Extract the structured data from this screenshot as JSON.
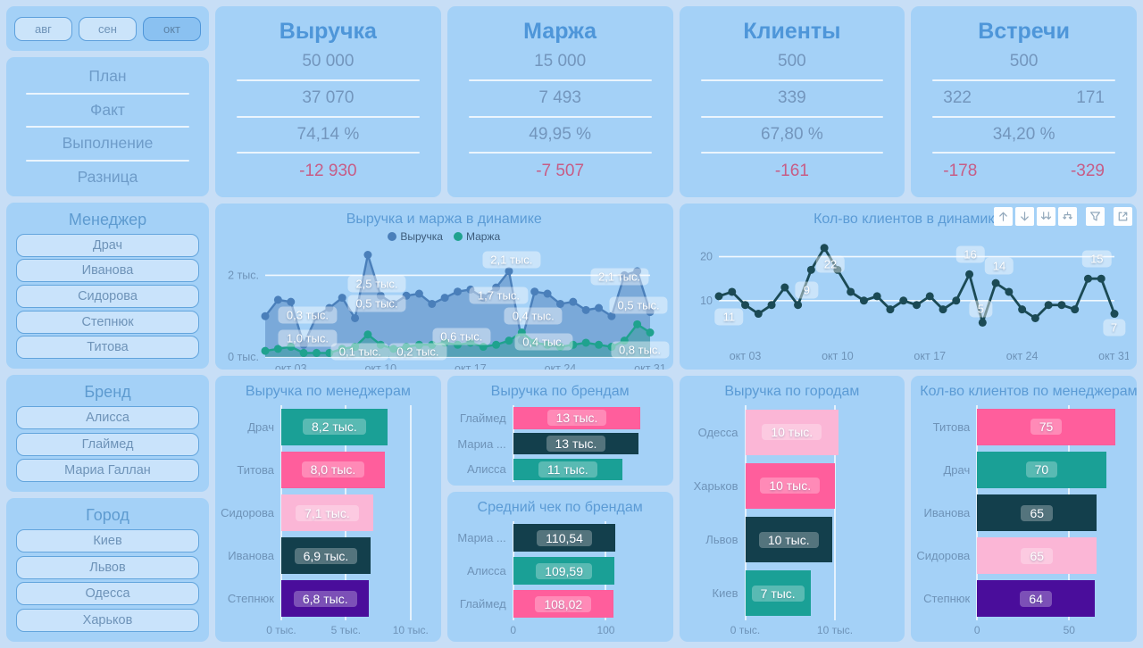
{
  "palette": {
    "accent_title": "#4E96D9",
    "text_blue": "#6E93B8",
    "negative": "#C75D86",
    "teal": "#1AA096",
    "pink": "#FF5E9C",
    "light_pink": "#FBB6D6",
    "navy": "#133F4C",
    "purple": "#4A0D9B",
    "revenue_line": "#4A7FBA",
    "margin_line": "#1FA28E",
    "clients_line": "#1B4A55"
  },
  "sidebar": {
    "months": [
      {
        "label": "авг",
        "selected": false
      },
      {
        "label": "сен",
        "selected": false
      },
      {
        "label": "окт",
        "selected": true
      }
    ],
    "kpi_row_labels": [
      "План",
      "Факт",
      "Выполнение",
      "Разница"
    ],
    "filters": [
      {
        "title": "Менеджер",
        "items": [
          "Драч",
          "Иванова",
          "Сидорова",
          "Степнюк",
          "Титова"
        ]
      },
      {
        "title": "Бренд",
        "items": [
          "Алисса",
          "Глаймед",
          "Мариа Галлан"
        ]
      },
      {
        "title": "Город",
        "items": [
          "Киев",
          "Львов",
          "Одесса",
          "Харьков"
        ]
      }
    ]
  },
  "kpi_cards": [
    {
      "title": "Выручка",
      "rows": [
        [
          "50 000"
        ],
        [
          "37 070"
        ],
        [
          "74,14 %"
        ],
        [
          "-12 930"
        ]
      ]
    },
    {
      "title": "Маржа",
      "rows": [
        [
          "15 000"
        ],
        [
          "7 493"
        ],
        [
          "49,95 %"
        ],
        [
          "-7 507"
        ]
      ]
    },
    {
      "title": "Клиенты",
      "rows": [
        [
          "500"
        ],
        [
          "339"
        ],
        [
          "67,80 %"
        ],
        [
          "-161"
        ]
      ]
    },
    {
      "title": "Встречи",
      "rows": [
        [
          "500"
        ],
        [
          "322",
          "171"
        ],
        [
          "34,20 %"
        ],
        [
          "-178",
          "-329"
        ]
      ]
    }
  ],
  "visual_header_icons": [
    "drill-up",
    "drill-down",
    "go-to-next-level",
    "expand-all-down",
    "filter",
    "focus-mode"
  ],
  "chart_data": [
    {
      "id": "revenue_margin_dynamics",
      "type": "line",
      "title": "Выручка и маржа в динамике",
      "legend": [
        {
          "name": "Выручка",
          "color": "#4A7FBA"
        },
        {
          "name": "Маржа",
          "color": "#1FA28E"
        }
      ],
      "x_ticks": [
        {
          "day": 3,
          "label": "окт 03"
        },
        {
          "day": 10,
          "label": "окт 10"
        },
        {
          "day": 17,
          "label": "окт 17"
        },
        {
          "day": 24,
          "label": "окт 24"
        },
        {
          "day": 31,
          "label": "окт 31"
        }
      ],
      "y_ticks": [
        {
          "v": 0,
          "label": "0 тыс."
        },
        {
          "v": 2,
          "label": "2 тыс."
        }
      ],
      "ylim": [
        0,
        2.62
      ],
      "series": [
        {
          "name": "Выручка",
          "color": "#4A7FBA",
          "fill": "rgba(64,115,176,0.42)",
          "values": [
            1.0,
            1.4,
            1.35,
            0.3,
            1.0,
            1.2,
            1.45,
            0.95,
            2.5,
            1.5,
            1.3,
            1.5,
            1.55,
            1.3,
            1.45,
            1.6,
            1.65,
            1.45,
            1.7,
            2.1,
            0.4,
            1.6,
            1.55,
            1.3,
            1.35,
            1.15,
            1.2,
            1.0,
            2.0,
            2.1,
            1.1
          ]
        },
        {
          "name": "Маржа",
          "color": "#1FA28E",
          "fill": "rgba(26,150,132,0.38)",
          "values": [
            0.15,
            0.2,
            0.25,
            0.1,
            0.1,
            0.1,
            0.2,
            0.25,
            0.55,
            0.3,
            0.2,
            0.25,
            0.3,
            0.3,
            0.35,
            0.3,
            0.35,
            0.25,
            0.3,
            0.4,
            0.6,
            0.35,
            0.3,
            0.25,
            0.3,
            0.35,
            0.3,
            0.25,
            0.4,
            0.8,
            0.6
          ]
        }
      ],
      "point_labels": [
        {
          "text": "0,3 тыс.",
          "day": 4.3,
          "v": 1.02
        },
        {
          "text": "1,0 тыс.",
          "day": 4.3,
          "v": 0.45
        },
        {
          "text": "2,5 тыс.",
          "day": 9.7,
          "v": 1.78
        },
        {
          "text": "0,5 тыс.",
          "day": 9.7,
          "v": 1.3
        },
        {
          "text": "0,1 тыс.",
          "day": 8.4,
          "v": 0.13
        },
        {
          "text": "0,2 тыс.",
          "day": 12.9,
          "v": 0.13
        },
        {
          "text": "0,6 тыс.",
          "day": 16.3,
          "v": 0.5
        },
        {
          "text": "1,7 тыс.",
          "day": 19.2,
          "v": 1.5
        },
        {
          "text": "2,1 тыс.",
          "day": 20.2,
          "v": 2.38
        },
        {
          "text": "0,4 тыс.",
          "day": 21.9,
          "v": 1.0
        },
        {
          "text": "0,4 тыс.",
          "day": 22.7,
          "v": 0.38
        },
        {
          "text": "2,1 тыс.",
          "day": 28.6,
          "v": 1.97
        },
        {
          "text": "0,5 тыс.",
          "day": 30.1,
          "v": 1.27
        },
        {
          "text": "0,8 тыс.",
          "day": 30.2,
          "v": 0.18
        }
      ],
      "marker_r": 4.5,
      "line_w": 2.4
    },
    {
      "id": "clients_dynamics",
      "type": "line",
      "title": "Кол-во клиентов в динамике",
      "legend": [],
      "x_ticks": [
        {
          "day": 3,
          "label": "окт 03"
        },
        {
          "day": 10,
          "label": "окт 10"
        },
        {
          "day": 17,
          "label": "окт 17"
        },
        {
          "day": 24,
          "label": "окт 24"
        },
        {
          "day": 31,
          "label": "окт 31"
        }
      ],
      "y_ticks": [
        {
          "v": 10,
          "label": "10"
        },
        {
          "v": 20,
          "label": "20"
        }
      ],
      "ylim": [
        0,
        25
      ],
      "series": [
        {
          "name": "Клиенты",
          "color": "#1B4A55",
          "fill": null,
          "values": [
            11,
            12,
            9,
            7,
            9,
            13,
            9,
            17,
            22,
            17,
            12,
            10,
            11,
            8,
            10,
            9,
            11,
            8,
            10,
            16,
            5,
            14,
            12,
            8,
            6,
            9,
            9,
            8,
            15,
            15,
            7
          ]
        }
      ],
      "point_labels": [
        {
          "text": "11",
          "day": 1.8,
          "v": 6.3
        },
        {
          "text": "9",
          "day": 7.7,
          "v": 12.5
        },
        {
          "text": "22",
          "day": 9.5,
          "v": 18.3
        },
        {
          "text": "16",
          "day": 20.1,
          "v": 20.6
        },
        {
          "text": "14",
          "day": 22.3,
          "v": 17.8
        },
        {
          "text": "5",
          "day": 20.9,
          "v": 8.2
        },
        {
          "text": "15",
          "day": 29.7,
          "v": 19.6
        },
        {
          "text": "7",
          "day": 31,
          "v": 3.8
        }
      ],
      "marker_r": 4.5,
      "line_w": 2.8
    },
    {
      "id": "revenue_by_manager",
      "type": "bar",
      "title": "Выручка по менеджерам",
      "categories": [
        "Драч",
        "Титова",
        "Сидорова",
        "Иванова",
        "Степнюк"
      ],
      "values": [
        8.2,
        8.0,
        7.1,
        6.9,
        6.8
      ],
      "value_labels": [
        "8,2 тыс.",
        "8,0 тыс.",
        "7,1 тыс.",
        "6,9 тыс.",
        "6,8 тыс."
      ],
      "colors": [
        "#1AA096",
        "#FF5E9C",
        "#FBB6D6",
        "#133F4C",
        "#4A0D9B"
      ],
      "xmax": 11.1,
      "ticks": [
        {
          "v": 0,
          "label": "0 тыс."
        },
        {
          "v": 5,
          "label": "5 тыс."
        },
        {
          "v": 10,
          "label": "10 тыс."
        }
      ]
    },
    {
      "id": "revenue_by_brand",
      "type": "bar",
      "title": "Выручка по брендам",
      "categories": [
        "Глаймед",
        "Мариа ...",
        "Алисса"
      ],
      "values": [
        13.3,
        13.1,
        11.4
      ],
      "value_labels": [
        "13 тыс.",
        "13 тыс.",
        "11 тыс."
      ],
      "colors": [
        "#FF5E9C",
        "#133F4C",
        "#1AA096"
      ],
      "xmax": 15,
      "ticks": [
        {
          "v": 0,
          "label": ""
        }
      ]
    },
    {
      "id": "avg_check_by_brand",
      "type": "bar",
      "title": "Средний чек по брендам",
      "categories": [
        "Мариа ...",
        "Алисса",
        "Глаймед"
      ],
      "values": [
        110.54,
        109.59,
        108.02
      ],
      "value_labels": [
        "110,54",
        "109,59",
        "108,02"
      ],
      "colors": [
        "#133F4C",
        "#1AA096",
        "#FF5E9C"
      ],
      "xmax": 155,
      "ticks": [
        {
          "v": 0,
          "label": "0"
        },
        {
          "v": 100,
          "label": "100"
        }
      ]
    },
    {
      "id": "revenue_by_city",
      "type": "bar",
      "title": "Выручка по городам",
      "categories": [
        "Одесса",
        "Харьков",
        "Львов",
        "Киев"
      ],
      "values": [
        10.4,
        10.0,
        9.7,
        7.3
      ],
      "value_labels": [
        "10 тыс.",
        "10 тыс.",
        "10 тыс.",
        "7 тыс."
      ],
      "colors": [
        "#FBB6D6",
        "#FF5E9C",
        "#133F4C",
        "#1AA096"
      ],
      "xmax": 16,
      "ticks": [
        {
          "v": 0,
          "label": "0 тыс."
        },
        {
          "v": 10,
          "label": "10 тыс."
        }
      ]
    },
    {
      "id": "clients_by_manager",
      "type": "bar",
      "title": "Кол-во клиентов по менеджерам",
      "categories": [
        "Титова",
        "Драч",
        "Иванова",
        "Сидорова",
        "Степнюк"
      ],
      "values": [
        75,
        70,
        65,
        65,
        64
      ],
      "value_labels": [
        "75",
        "70",
        "65",
        "65",
        "64"
      ],
      "colors": [
        "#FF5E9C",
        "#1AA096",
        "#133F4C",
        "#FBB6D6",
        "#4A0D9B"
      ],
      "xmax": 78,
      "ticks": [
        {
          "v": 0,
          "label": "0"
        },
        {
          "v": 50,
          "label": "50"
        }
      ]
    }
  ]
}
